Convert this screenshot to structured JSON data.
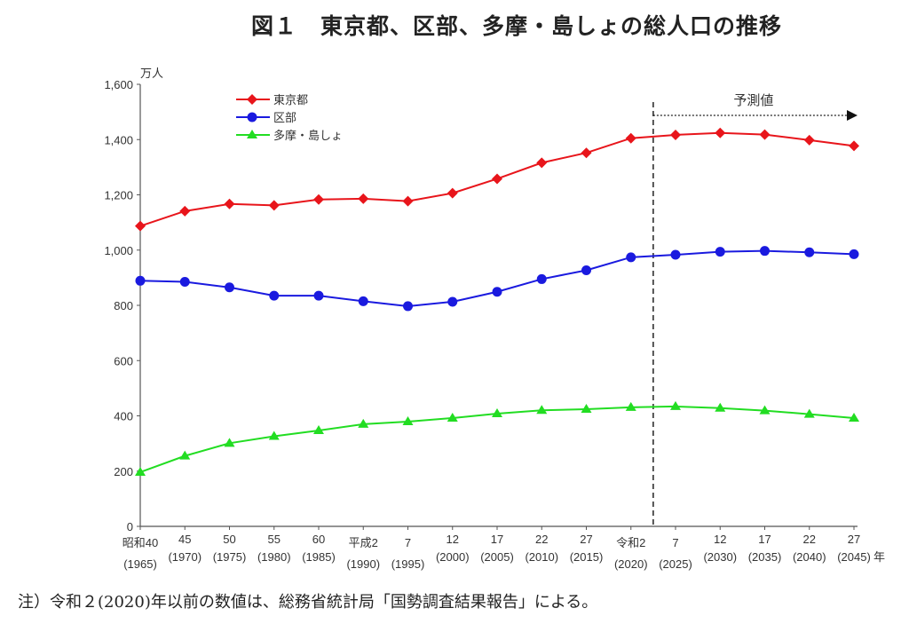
{
  "chart_data": {
    "type": "line",
    "title": "図１　東京都、区部、多摩・島しょの総人口の推移",
    "ylabel": "万人",
    "xunit": "年",
    "ylim": [
      0,
      1600
    ],
    "yticks": [
      "0",
      "200",
      "400",
      "600",
      "800",
      "1,000",
      "1,200",
      "1,400",
      "1,600"
    ],
    "categories": [
      [
        "昭和40",
        "(1965)"
      ],
      [
        "45",
        "(1970)"
      ],
      [
        "50",
        "(1975)"
      ],
      [
        "55",
        "(1980)"
      ],
      [
        "60",
        "(1985)"
      ],
      [
        "平成2",
        "(1990)"
      ],
      [
        "7",
        "(1995)"
      ],
      [
        "12",
        "(2000)"
      ],
      [
        "17",
        "(2005)"
      ],
      [
        "22",
        "(2010)"
      ],
      [
        "27",
        "(2015)"
      ],
      [
        "令和2",
        "(2020)"
      ],
      [
        "7",
        "(2025)"
      ],
      [
        "12",
        "(2030)"
      ],
      [
        "17",
        "(2035)"
      ],
      [
        "22",
        "(2040)"
      ],
      [
        "27",
        "(2045)"
      ]
    ],
    "series": [
      {
        "name": "東京都",
        "color": "#e8151b",
        "marker": "diamond",
        "values": [
          1087,
          1141,
          1167,
          1162,
          1183,
          1186,
          1177,
          1206,
          1258,
          1316,
          1352,
          1405,
          1417,
          1424,
          1418,
          1398,
          1377
        ]
      },
      {
        "name": "区部",
        "color": "#1a1adf",
        "marker": "circle",
        "values": [
          889,
          885,
          865,
          835,
          835,
          815,
          797,
          813,
          849,
          895,
          927,
          974,
          983,
          994,
          997,
          992,
          985
        ]
      },
      {
        "name": "多摩・島しょ",
        "color": "#22dd22",
        "marker": "triangle",
        "values": [
          196,
          255,
          301,
          326,
          347,
          370,
          379,
          392,
          408,
          420,
          424,
          431,
          434,
          428,
          419,
          406,
          392
        ]
      }
    ],
    "forecast_label": "予測値",
    "legend": "top-left",
    "grid": false
  },
  "note": "注）令和２(2020)年以前の数値は、総務省統計局「国勢調査結果報告」による。"
}
